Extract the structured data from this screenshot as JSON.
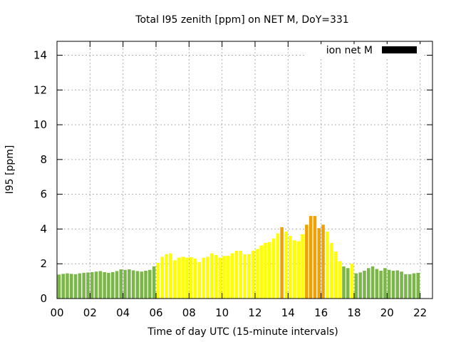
{
  "chart_data": {
    "type": "bar",
    "title": "Total I95 zenith [ppm] on NET M, DoY=331",
    "xlabel": "Time of day UTC (15-minute intervals)",
    "ylabel": "I95 [ppm]",
    "ylim": [
      0,
      14.8
    ],
    "xlim": [
      0,
      22.75
    ],
    "y_ticks": [
      0,
      2,
      4,
      6,
      8,
      10,
      12,
      14
    ],
    "x_ticks": [
      "00",
      "02",
      "04",
      "06",
      "08",
      "10",
      "12",
      "14",
      "16",
      "18",
      "20",
      "22"
    ],
    "x_tick_values": [
      0,
      2,
      4,
      6,
      8,
      10,
      12,
      14,
      16,
      18,
      20,
      22
    ],
    "grid": true,
    "legend": {
      "placement": "top-right",
      "entries": [
        {
          "label": "ion net M",
          "color": "#000000"
        }
      ]
    },
    "bar_interval_hours": 0.25,
    "color_key": {
      "G": "#7ab648",
      "Y": "#ffff00",
      "O": "#f0a000"
    },
    "values": [
      1.38,
      1.42,
      1.45,
      1.42,
      1.4,
      1.45,
      1.48,
      1.5,
      1.52,
      1.55,
      1.58,
      1.52,
      1.48,
      1.52,
      1.58,
      1.68,
      1.65,
      1.68,
      1.62,
      1.58,
      1.55,
      1.6,
      1.65,
      1.85,
      2.05,
      2.4,
      2.55,
      2.6,
      2.2,
      2.35,
      2.4,
      2.35,
      2.38,
      2.3,
      2.1,
      2.35,
      2.4,
      2.6,
      2.5,
      2.35,
      2.45,
      2.45,
      2.6,
      2.75,
      2.75,
      2.55,
      2.55,
      2.75,
      2.85,
      3.05,
      3.2,
      3.25,
      3.45,
      3.75,
      4.1,
      3.85,
      3.6,
      3.35,
      3.3,
      3.7,
      4.25,
      4.75,
      4.75,
      4.05,
      4.25,
      3.85,
      3.2,
      2.7,
      2.15,
      1.85,
      1.75,
      2.0,
      1.45,
      1.5,
      1.6,
      1.75,
      1.85,
      1.7,
      1.6,
      1.75,
      1.65,
      1.6,
      1.62,
      1.55,
      1.4,
      1.4,
      1.45,
      1.48
    ],
    "colors": "GGGGGGGGGGGGGGGGGGGGGGGGYYYYYYYYYYYYYYYYYYYYYYYYYYYYYYOYYYYYOOOOOYYYYGGYGGGGGGGGGGGGGGGG"
  }
}
